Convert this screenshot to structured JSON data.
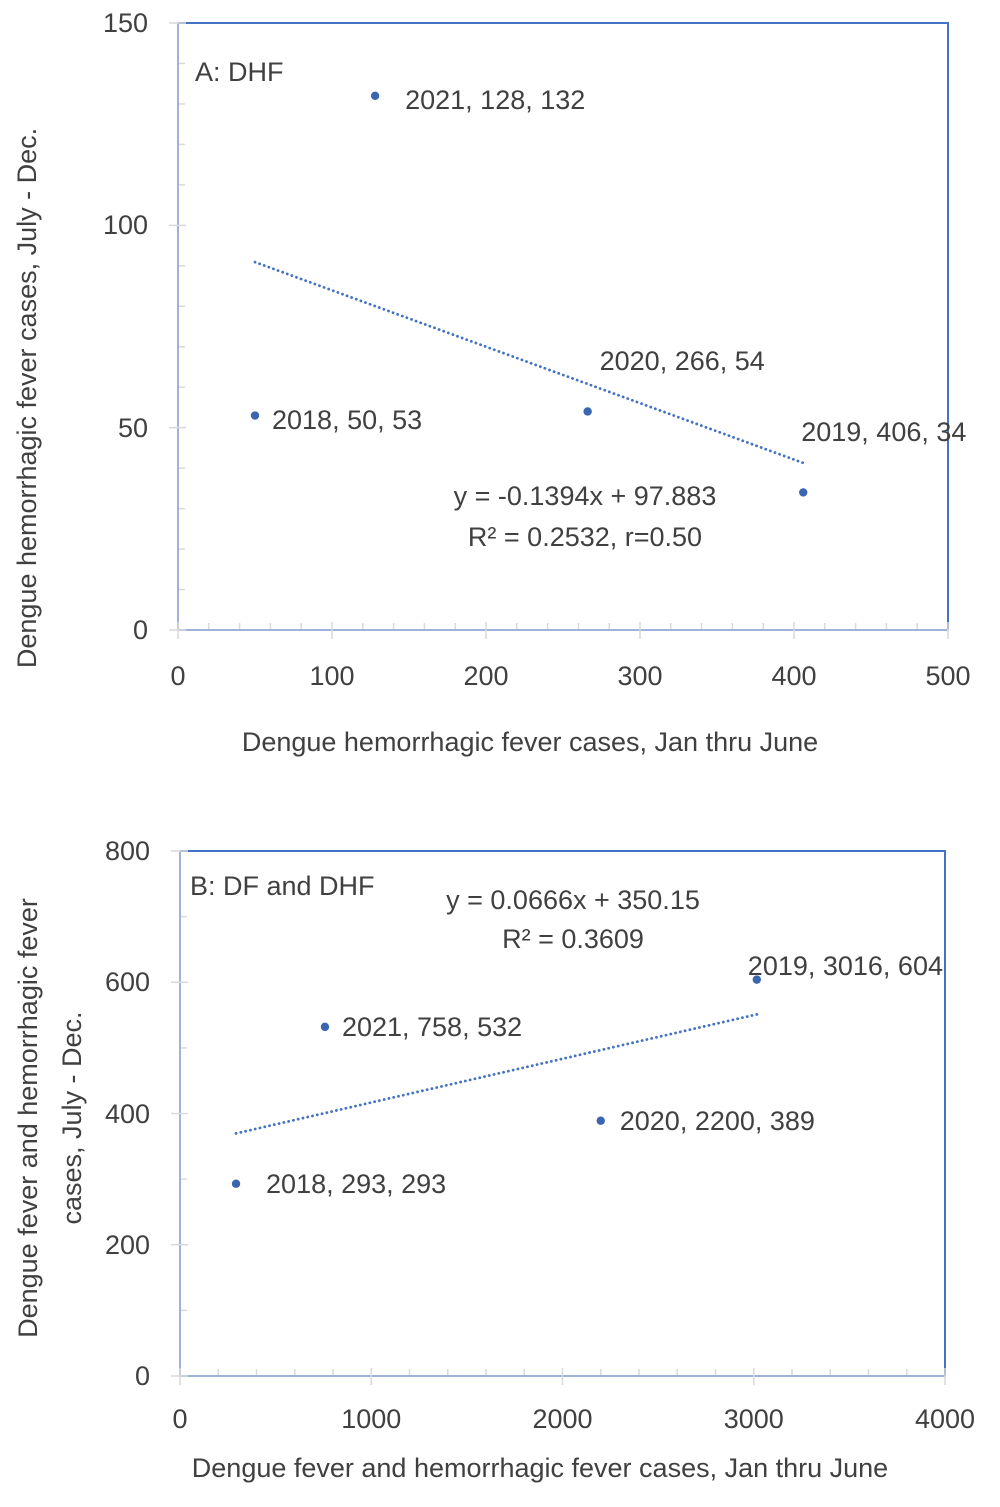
{
  "colors": {
    "accent": "#4472C4",
    "marker": "#3A66B0",
    "axis_line": "#9FB3D9",
    "tick": "#D9D9D9",
    "text": "#404040"
  },
  "chart_data": [
    {
      "type": "scatter",
      "panel": "A",
      "title": "A: DHF",
      "xlabel": "Dengue hemorrhagic fever cases, Jan thru June",
      "ylabel": "Dengue hemorrhagic fever cases, July - Dec.",
      "ylabel_lines": [
        "Dengue hemorrhagic fever cases, July - Dec."
      ],
      "xlim": [
        0,
        500
      ],
      "ylim": [
        0,
        150
      ],
      "x_major_ticks": [
        0,
        100,
        200,
        300,
        400,
        500
      ],
      "x_minor_step": 20,
      "y_major_ticks": [
        0,
        50,
        100,
        150
      ],
      "y_minor_step": 10,
      "grid": false,
      "legend": "none",
      "points": [
        {
          "year": 2018,
          "x": 50,
          "y": 53,
          "label": "2018, 50, 53"
        },
        {
          "year": 2019,
          "x": 406,
          "y": 34,
          "label": "2019, 406, 34"
        },
        {
          "year": 2020,
          "x": 266,
          "y": 54,
          "label": "2020, 266, 54"
        },
        {
          "year": 2021,
          "x": 128,
          "y": 132,
          "label": "2021, 128, 132"
        }
      ],
      "trendline": {
        "style": "dotted",
        "slope": -0.1394,
        "intercept": 97.883,
        "x_start": 50,
        "x_end": 406,
        "equation": "y = -0.1394x + 97.883",
        "r_squared_text": "R² = 0.2532, r=0.50"
      }
    },
    {
      "type": "scatter",
      "panel": "B",
      "title": "B: DF and DHF",
      "xlabel": "Dengue fever and hemorrhagic fever cases, Jan thru June",
      "ylabel": "Dengue fever and hemorrhagic fever cases, July - Dec.",
      "ylabel_lines": [
        "Dengue fever and hemorrhagic fever",
        "cases, July - Dec."
      ],
      "xlim": [
        0,
        4000
      ],
      "ylim": [
        0,
        800
      ],
      "x_major_ticks": [
        0,
        1000,
        2000,
        3000,
        4000
      ],
      "x_minor_step": 200,
      "y_major_ticks": [
        0,
        200,
        400,
        600,
        800
      ],
      "y_minor_step": 100,
      "grid": false,
      "legend": "none",
      "points": [
        {
          "year": 2018,
          "x": 293,
          "y": 293,
          "label": "2018, 293, 293"
        },
        {
          "year": 2019,
          "x": 3016,
          "y": 604,
          "label": "2019, 3016, 604"
        },
        {
          "year": 2020,
          "x": 2200,
          "y": 389,
          "label": "2020, 2200, 389"
        },
        {
          "year": 2021,
          "x": 758,
          "y": 532,
          "label": "2021, 758, 532"
        }
      ],
      "trendline": {
        "style": "dotted",
        "slope": 0.0666,
        "intercept": 350.15,
        "x_start": 293,
        "x_end": 3016,
        "equation": "y = 0.0666x + 350.15",
        "r_squared_text": "R² = 0.3609"
      }
    }
  ]
}
